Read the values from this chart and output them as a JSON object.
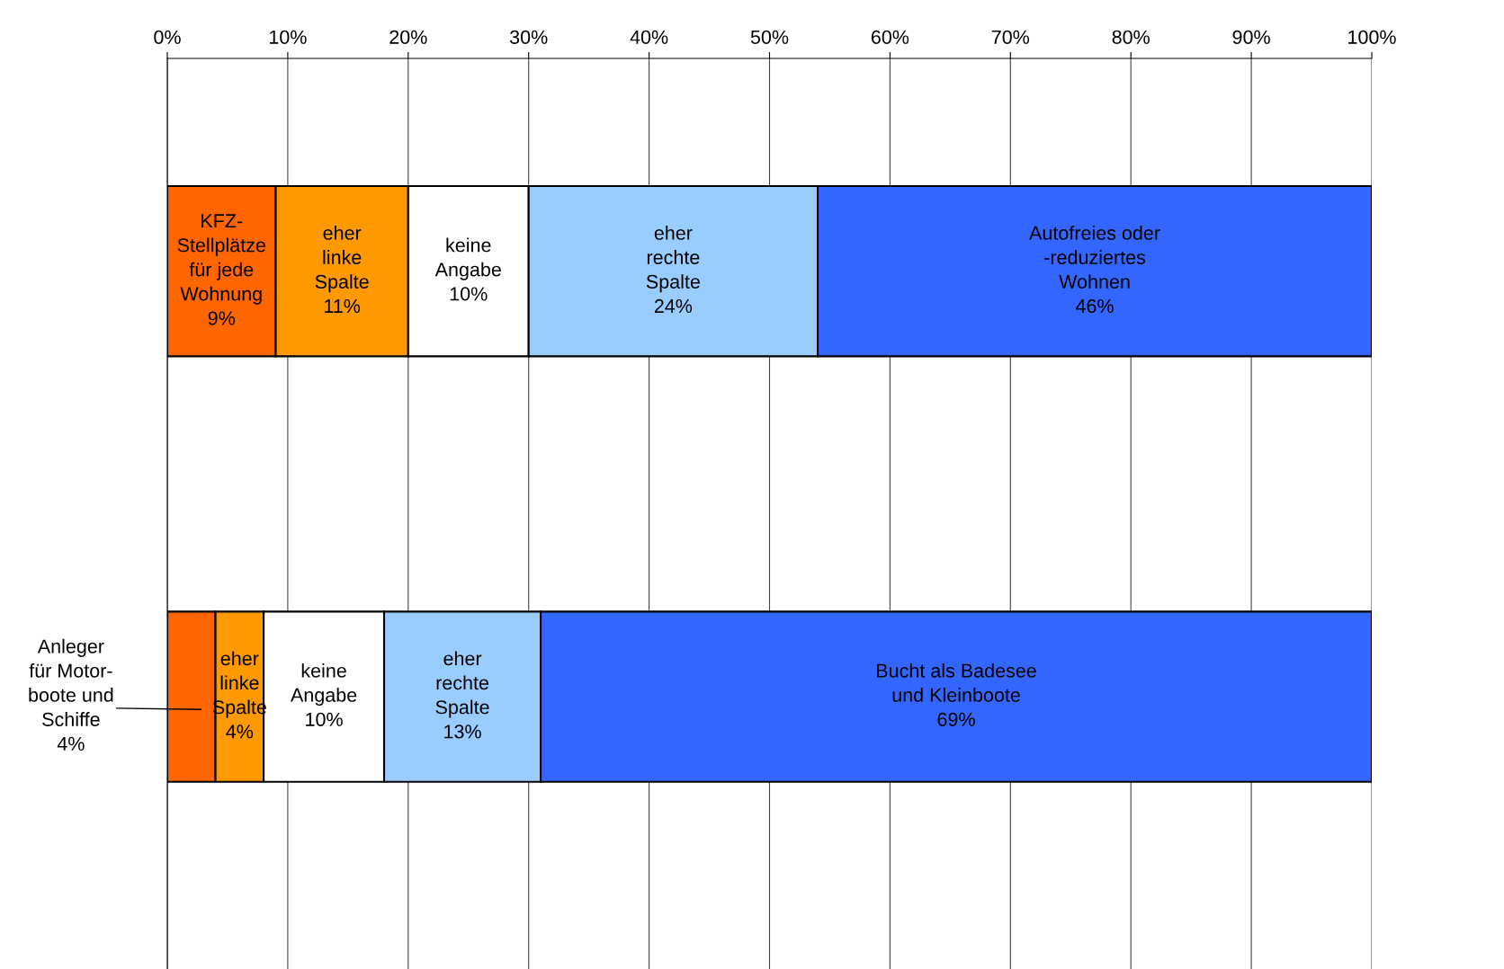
{
  "chart_data": {
    "type": "bar",
    "orientation": "horizontal",
    "stacked": true,
    "categories": [
      null,
      null
    ],
    "series": [
      {
        "color": "#ff6600",
        "values": [
          9,
          4
        ],
        "value_labels": [
          "KFZ-\nStellplätze\nfür jede\nWohnung\n9%",
          "Anleger\nfür Motor-\nboote und\nSchiffe\n4%"
        ]
      },
      {
        "color": "#ff9900",
        "values": [
          11,
          4
        ],
        "value_labels": [
          "eher\nlinke\nSpalte\n11%",
          "eher\nlinke\nSpalte\n4%"
        ]
      },
      {
        "color": "#ffffff",
        "values": [
          10,
          10
        ],
        "value_labels": [
          "keine\nAngabe\n10%",
          "keine\nAngabe\n10%"
        ]
      },
      {
        "color": "#99ccff",
        "values": [
          24,
          13
        ],
        "value_labels": [
          "eher\nrechte\nSpalte\n24%",
          "eher\nrechte\nSpalte\n13%"
        ]
      },
      {
        "color": "#3366ff",
        "values": [
          46,
          69
        ],
        "value_labels": [
          "Autofreies oder\n-reduziertes\nWohnen\n46%",
          "Bucht als Badesee\nund Kleinboote\n69%"
        ]
      }
    ],
    "xlim": [
      0,
      100
    ],
    "xticks": [
      {
        "value": 0,
        "label": "0%"
      },
      {
        "value": 10,
        "label": "10%"
      },
      {
        "value": 20,
        "label": "20%"
      },
      {
        "value": 30,
        "label": "30%"
      },
      {
        "value": 40,
        "label": "40%"
      },
      {
        "value": 50,
        "label": "50%"
      },
      {
        "value": 60,
        "label": "60%"
      },
      {
        "value": 70,
        "label": "70%"
      },
      {
        "value": 80,
        "label": "80%"
      },
      {
        "value": 90,
        "label": "90%"
      },
      {
        "value": 100,
        "label": "100%"
      }
    ],
    "grid": "x",
    "tick_labels": "x"
  }
}
